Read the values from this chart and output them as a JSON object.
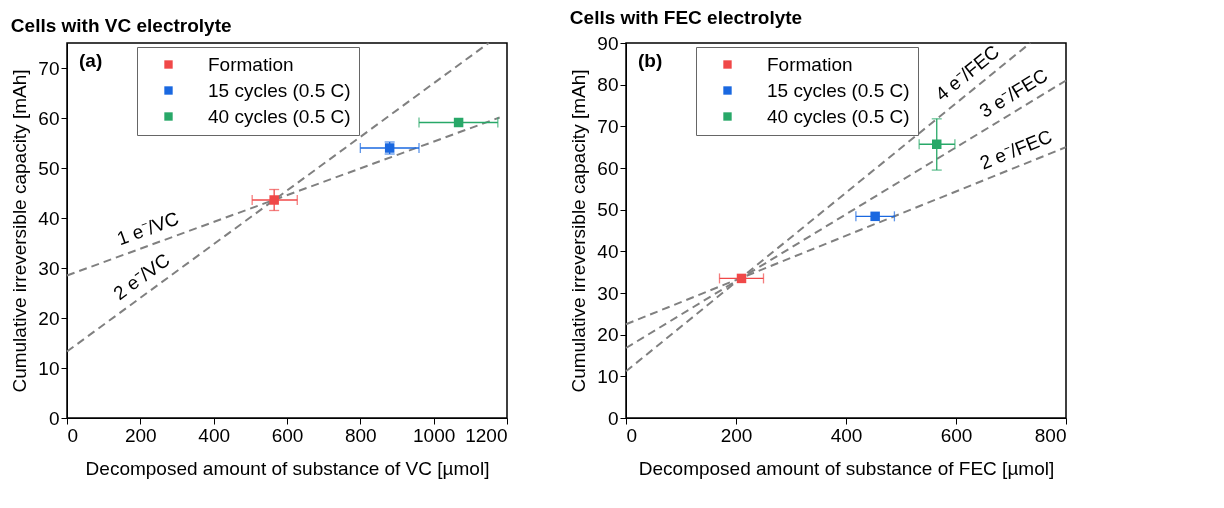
{
  "chart_data": [
    {
      "type": "scatter",
      "title": "Cells with VC electrolyte",
      "xlabel": "Decomposed amount of substance of VC [µmol]",
      "ylabel": "Cumulative irreversible capacity [mAh]",
      "annotations": [
        "(a)"
      ],
      "xlim": [
        0,
        1200
      ],
      "ylim": [
        0,
        75
      ],
      "xticks": [
        0,
        200,
        400,
        600,
        800,
        1000,
        1200
      ],
      "yticks": [
        0,
        10,
        20,
        30,
        40,
        50,
        60,
        70
      ],
      "legend": "top left",
      "grid": false,
      "series": [
        {
          "name": "Formation",
          "color": "#f04848",
          "marker": "square",
          "x": [
            565
          ],
          "values": [
            43.6
          ],
          "errors": [
            2.1
          ],
          "xerrors": [
            [
              505,
              628
            ]
          ]
        },
        {
          "name": "15 cycles (0.5 C)",
          "color": "#1a68e0",
          "marker": "square",
          "x": [
            880
          ],
          "values": [
            54
          ],
          "errors": [
            1.2
          ],
          "xerrors": [
            [
              800,
              960
            ]
          ]
        },
        {
          "name": "40 cycles (0.5 C)",
          "color": "#28a868",
          "marker": "square",
          "x": [
            1068
          ],
          "values": [
            59.1
          ],
          "errors": [
            null
          ],
          "xerrors": [
            [
              960,
              1175
            ]
          ]
        },
        {
          "name": "1 e⁻/VC",
          "type": "line",
          "marker": "none",
          "line_style": "dashed",
          "color": "#808080",
          "x": [
            0,
            1180
          ],
          "values": [
            28.5,
            60.1
          ]
        },
        {
          "name": "2 e⁻/VC",
          "type": "line",
          "marker": "none",
          "line_style": "dashed",
          "color": "#808080",
          "x": [
            0,
            1150
          ],
          "values": [
            13.3,
            75
          ]
        }
      ]
    },
    {
      "type": "scatter",
      "title": "Cells with FEC electrolyte",
      "xlabel": "Decomposed amount of substance of FEC [µmol]",
      "ylabel": "Cumulative irreversible capacity [mAh]",
      "annotations": [
        "(b)"
      ],
      "xlim": [
        0,
        800
      ],
      "ylim": [
        0,
        90
      ],
      "xticks": [
        0,
        200,
        400,
        600,
        800
      ],
      "yticks": [
        0,
        10,
        20,
        30,
        40,
        50,
        60,
        70,
        80,
        90
      ],
      "legend": "top left",
      "grid": false,
      "series": [
        {
          "name": "Formation",
          "color": "#f04848",
          "marker": "square",
          "x": [
            210
          ],
          "values": [
            33.5
          ],
          "errors": [
            null
          ],
          "xerrors": [
            [
              170,
              250
            ]
          ]
        },
        {
          "name": "15 cycles (0.5 C)",
          "color": "#1a68e0",
          "marker": "square",
          "x": [
            453
          ],
          "values": [
            48.4
          ],
          "errors": [
            null
          ],
          "xerrors": [
            [
              418,
              488
            ]
          ]
        },
        {
          "name": "40 cycles (0.5 C)",
          "color": "#28a868",
          "marker": "square",
          "x": [
            565
          ],
          "values": [
            65.7
          ],
          "errors": [
            [
              59.5,
              71.8
            ]
          ],
          "xerrors": [
            [
              533,
              598
            ]
          ]
        },
        {
          "name": "4 e⁻/FEC",
          "type": "line",
          "marker": "none",
          "line_style": "dashed",
          "color": "#808080",
          "x": [
            0,
            735
          ],
          "values": [
            11.2,
            90
          ]
        },
        {
          "name": "3 e⁻/FEC",
          "type": "line",
          "marker": "none",
          "line_style": "dashed",
          "color": "#808080",
          "x": [
            0,
            800
          ],
          "values": [
            16.8,
            81
          ]
        },
        {
          "name": "2 e⁻/FEC",
          "type": "line",
          "marker": "none",
          "line_style": "dashed",
          "color": "#808080",
          "x": [
            0,
            800
          ],
          "values": [
            22.5,
            65
          ]
        }
      ]
    }
  ]
}
